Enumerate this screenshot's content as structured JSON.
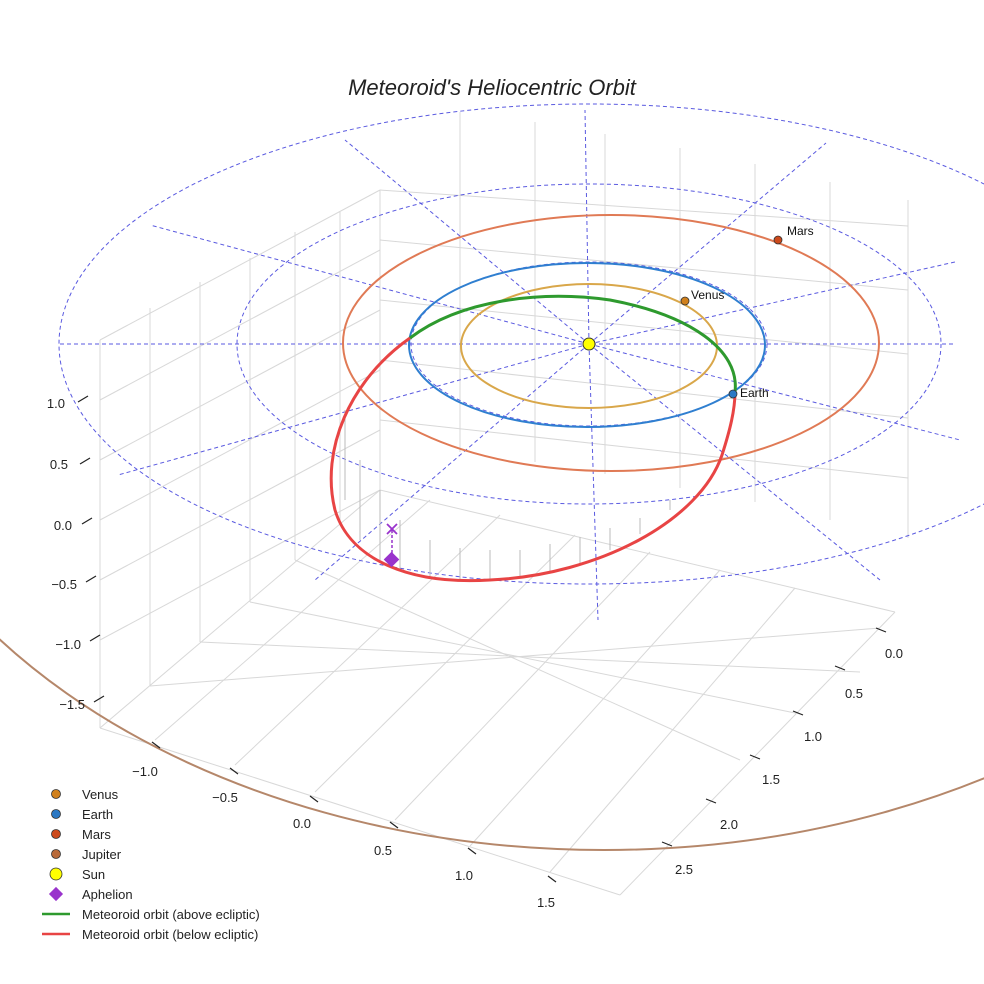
{
  "chart_data": {
    "type": "3d-orbit",
    "title": "Meteoroid's Heliocentric Orbit",
    "axes": {
      "x_ticks": [
        "0.0",
        "0.5",
        "1.0",
        "1.5",
        "2.0",
        "2.5"
      ],
      "y_ticks": [
        "−1.0",
        "−0.5",
        "0.0",
        "0.5",
        "1.0",
        "1.5"
      ],
      "z_ticks": [
        "1.0",
        "0.5",
        "0.0",
        "−0.5",
        "−1.0",
        "−1.5"
      ],
      "z_range": [
        -1.5,
        1.0
      ]
    },
    "orbits": [
      {
        "name": "Venus orbit",
        "radius_au": 0.72,
        "color": "#d9a74a"
      },
      {
        "name": "Earth orbit",
        "radius_au": 1.0,
        "color": "#2f7fd0"
      },
      {
        "name": "Mars orbit",
        "radius_au": 1.52,
        "color": "#e07a55"
      },
      {
        "name": "Jupiter orbit",
        "radius_au": 5.2,
        "color": "#b5876a"
      }
    ],
    "planets": [
      {
        "name": "Venus",
        "label": "Venus",
        "color": "#d0801c"
      },
      {
        "name": "Earth",
        "label": "Earth",
        "color": "#2a78c4"
      },
      {
        "name": "Mars",
        "label": "Mars",
        "color": "#cc4a1c"
      }
    ],
    "meteoroid": {
      "above_color": "#2e9a2e",
      "below_color": "#e84444",
      "aphelion_color": "#9933cc"
    },
    "legend": [
      {
        "label": "Venus",
        "marker": "circle",
        "color": "#d0801c"
      },
      {
        "label": "Earth",
        "marker": "circle",
        "color": "#2a78c4"
      },
      {
        "label": "Mars",
        "marker": "circle",
        "color": "#cc4a1c"
      },
      {
        "label": "Jupiter",
        "marker": "circle",
        "color": "#b86a3a"
      },
      {
        "label": "Sun",
        "marker": "circle-large",
        "color": "#ffff00"
      },
      {
        "label": "Aphelion",
        "marker": "diamond",
        "color": "#9933cc"
      },
      {
        "label": "Meteoroid orbit (above ecliptic)",
        "marker": "line",
        "color": "#2e9a2e"
      },
      {
        "label": "Meteoroid orbit (below ecliptic)",
        "marker": "line",
        "color": "#e84444"
      }
    ]
  }
}
